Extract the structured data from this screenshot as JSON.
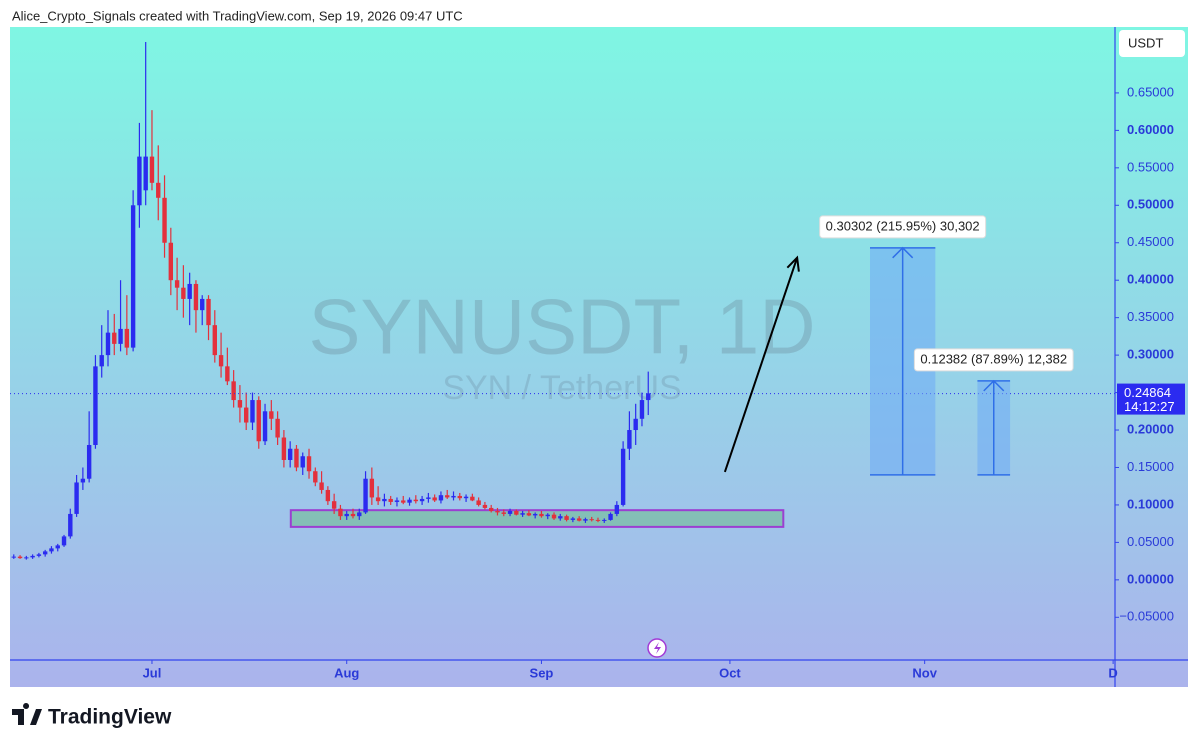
{
  "header": "Alice_Crypto_Signals created with TradingView.com, Sep 19, 2026 09:47 UTC",
  "footer": "TradingView",
  "chart_data": {
    "type": "candlestick",
    "watermark": "SYNUSDT, 1D",
    "watermark_subtitle": "SYN / TetherUS",
    "currency": "USDT",
    "up_color": "#2b2bf0",
    "down_color": "#e3303c",
    "xlim": [
      -22.6,
      153.3
    ],
    "xticks": [
      {
        "value": 0,
        "label": "Jul"
      },
      {
        "value": 31,
        "label": "Aug"
      },
      {
        "value": 62,
        "label": "Sep"
      },
      {
        "value": 92,
        "label": "Oct"
      },
      {
        "value": 123,
        "label": "Nov"
      },
      {
        "value": 153,
        "label": "D"
      }
    ],
    "ylim": [
      -0.107,
      0.738
    ],
    "yticks": [
      {
        "value": -0.05,
        "label": "−0.05000"
      },
      {
        "value": 0,
        "label": "0.00000"
      },
      {
        "value": 0.05,
        "label": "0.05000"
      },
      {
        "value": 0.1,
        "label": "0.10000"
      },
      {
        "value": 0.15,
        "label": "0.15000"
      },
      {
        "value": 0.2,
        "label": "0.20000"
      },
      {
        "value": 0.25,
        "label": "0.25000"
      },
      {
        "value": 0.3,
        "label": "0.30000"
      },
      {
        "value": 0.35,
        "label": "0.35000"
      },
      {
        "value": 0.4,
        "label": "0.40000"
      },
      {
        "value": 0.45,
        "label": "0.45000"
      },
      {
        "value": 0.5,
        "label": "0.50000"
      },
      {
        "value": 0.55,
        "label": "0.55000"
      },
      {
        "value": 0.6,
        "label": "0.60000"
      },
      {
        "value": 0.65,
        "label": "0.65000"
      }
    ],
    "last_price": {
      "value": 0.24864,
      "label": "0.24864"
    },
    "countdown": "14:12:27",
    "x": [
      -22,
      -21,
      -20,
      -19,
      -18,
      -17,
      -16,
      -15,
      -14,
      -13,
      -12,
      -11,
      -10,
      -9,
      -8,
      -7,
      -6,
      -5,
      -4,
      -3,
      -2,
      -1,
      0,
      1,
      2,
      3,
      4,
      5,
      6,
      7,
      8,
      9,
      10,
      11,
      12,
      13,
      14,
      15,
      16,
      17,
      18,
      19,
      20,
      21,
      22,
      23,
      24,
      25,
      26,
      27,
      28,
      29,
      30,
      31,
      32,
      33,
      34,
      35,
      36,
      37,
      38,
      39,
      40,
      41,
      42,
      43,
      44,
      45,
      46,
      47,
      48,
      49,
      50,
      51,
      52,
      53,
      54,
      55,
      56,
      57,
      58,
      59,
      60,
      61,
      62,
      63,
      64,
      65,
      66,
      67,
      68,
      69,
      70,
      71,
      72,
      73,
      74,
      75,
      76,
      77,
      78,
      79
    ],
    "open": [
      0.03,
      0.031,
      0.029,
      0.03,
      0.032,
      0.034,
      0.038,
      0.042,
      0.046,
      0.058,
      0.088,
      0.13,
      0.135,
      0.18,
      0.285,
      0.3,
      0.33,
      0.315,
      0.335,
      0.31,
      0.5,
      0.52,
      0.565,
      0.53,
      0.51,
      0.45,
      0.4,
      0.39,
      0.375,
      0.395,
      0.36,
      0.375,
      0.34,
      0.3,
      0.285,
      0.265,
      0.24,
      0.23,
      0.21,
      0.24,
      0.185,
      0.225,
      0.215,
      0.19,
      0.16,
      0.175,
      0.15,
      0.165,
      0.145,
      0.13,
      0.12,
      0.105,
      0.095,
      0.085,
      0.088,
      0.085,
      0.09,
      0.135,
      0.11,
      0.105,
      0.108,
      0.104,
      0.106,
      0.103,
      0.107,
      0.105,
      0.108,
      0.11,
      0.106,
      0.113,
      0.11,
      0.112,
      0.109,
      0.111,
      0.106,
      0.1,
      0.096,
      0.092,
      0.09,
      0.088,
      0.092,
      0.087,
      0.089,
      0.086,
      0.088,
      0.085,
      0.087,
      0.082,
      0.085,
      0.08,
      0.082,
      0.079,
      0.081,
      0.08,
      0.079,
      0.08,
      0.088,
      0.1,
      0.175,
      0.2,
      0.215,
      0.24
    ],
    "high": [
      0.034,
      0.033,
      0.032,
      0.034,
      0.036,
      0.04,
      0.045,
      0.048,
      0.06,
      0.095,
      0.14,
      0.15,
      0.225,
      0.3,
      0.34,
      0.36,
      0.355,
      0.4,
      0.38,
      0.52,
      0.61,
      0.718,
      0.627,
      0.58,
      0.54,
      0.47,
      0.43,
      0.42,
      0.41,
      0.4,
      0.38,
      0.38,
      0.36,
      0.33,
      0.31,
      0.28,
      0.26,
      0.25,
      0.25,
      0.245,
      0.235,
      0.24,
      0.225,
      0.2,
      0.185,
      0.18,
      0.17,
      0.175,
      0.15,
      0.145,
      0.125,
      0.115,
      0.1,
      0.092,
      0.095,
      0.095,
      0.145,
      0.15,
      0.125,
      0.115,
      0.112,
      0.11,
      0.112,
      0.11,
      0.113,
      0.112,
      0.116,
      0.114,
      0.118,
      0.12,
      0.118,
      0.116,
      0.114,
      0.115,
      0.11,
      0.104,
      0.1,
      0.096,
      0.094,
      0.095,
      0.094,
      0.092,
      0.093,
      0.09,
      0.092,
      0.089,
      0.09,
      0.088,
      0.087,
      0.084,
      0.085,
      0.083,
      0.084,
      0.083,
      0.082,
      0.09,
      0.105,
      0.185,
      0.225,
      0.235,
      0.25,
      0.278
    ],
    "low": [
      0.028,
      0.028,
      0.027,
      0.028,
      0.03,
      0.031,
      0.035,
      0.038,
      0.044,
      0.055,
      0.084,
      0.12,
      0.13,
      0.175,
      0.27,
      0.285,
      0.3,
      0.305,
      0.3,
      0.305,
      0.47,
      0.5,
      0.52,
      0.48,
      0.43,
      0.38,
      0.36,
      0.35,
      0.34,
      0.33,
      0.34,
      0.32,
      0.29,
      0.27,
      0.26,
      0.23,
      0.21,
      0.2,
      0.2,
      0.175,
      0.18,
      0.2,
      0.18,
      0.15,
      0.15,
      0.145,
      0.14,
      0.135,
      0.125,
      0.115,
      0.1,
      0.088,
      0.08,
      0.08,
      0.082,
      0.08,
      0.088,
      0.1,
      0.1,
      0.098,
      0.1,
      0.098,
      0.101,
      0.099,
      0.102,
      0.1,
      0.103,
      0.104,
      0.102,
      0.108,
      0.106,
      0.106,
      0.104,
      0.105,
      0.098,
      0.094,
      0.09,
      0.086,
      0.085,
      0.085,
      0.086,
      0.084,
      0.085,
      0.082,
      0.083,
      0.081,
      0.08,
      0.079,
      0.078,
      0.077,
      0.078,
      0.076,
      0.078,
      0.077,
      0.076,
      0.079,
      0.085,
      0.098,
      0.16,
      0.18,
      0.205,
      0.22
    ],
    "close": [
      0.031,
      0.029,
      0.03,
      0.032,
      0.034,
      0.038,
      0.042,
      0.046,
      0.058,
      0.088,
      0.13,
      0.135,
      0.18,
      0.285,
      0.3,
      0.33,
      0.315,
      0.335,
      0.31,
      0.5,
      0.565,
      0.565,
      0.53,
      0.51,
      0.45,
      0.4,
      0.39,
      0.375,
      0.395,
      0.36,
      0.375,
      0.34,
      0.3,
      0.285,
      0.265,
      0.24,
      0.23,
      0.21,
      0.24,
      0.185,
      0.225,
      0.215,
      0.19,
      0.16,
      0.175,
      0.15,
      0.165,
      0.145,
      0.13,
      0.12,
      0.105,
      0.095,
      0.085,
      0.088,
      0.085,
      0.09,
      0.135,
      0.11,
      0.105,
      0.108,
      0.104,
      0.106,
      0.103,
      0.107,
      0.105,
      0.108,
      0.11,
      0.106,
      0.113,
      0.11,
      0.112,
      0.109,
      0.111,
      0.106,
      0.1,
      0.096,
      0.092,
      0.09,
      0.088,
      0.092,
      0.087,
      0.089,
      0.086,
      0.088,
      0.085,
      0.087,
      0.082,
      0.085,
      0.08,
      0.082,
      0.079,
      0.081,
      0.08,
      0.079,
      0.08,
      0.088,
      0.1,
      0.175,
      0.2,
      0.215,
      0.24,
      0.249
    ],
    "range_box": {
      "x": [
        22.1,
        100.5
      ],
      "y": [
        0.0707,
        0.093
      ],
      "color": "#9b3fd1"
    },
    "arrow": {
      "x": [
        91.2,
        102.7
      ],
      "y": [
        0.144,
        0.43
      ]
    },
    "measures": [
      {
        "label": "0.30302 (215.95%) 30,302",
        "x": [
          114.3,
          124.7
        ],
        "y": [
          0.1401,
          0.4432
        ]
      },
      {
        "label": "0.12382 (87.89%) 12,382",
        "x": [
          131.4,
          136.6
        ],
        "y": [
          0.1401,
          0.2656
        ]
      }
    ]
  }
}
